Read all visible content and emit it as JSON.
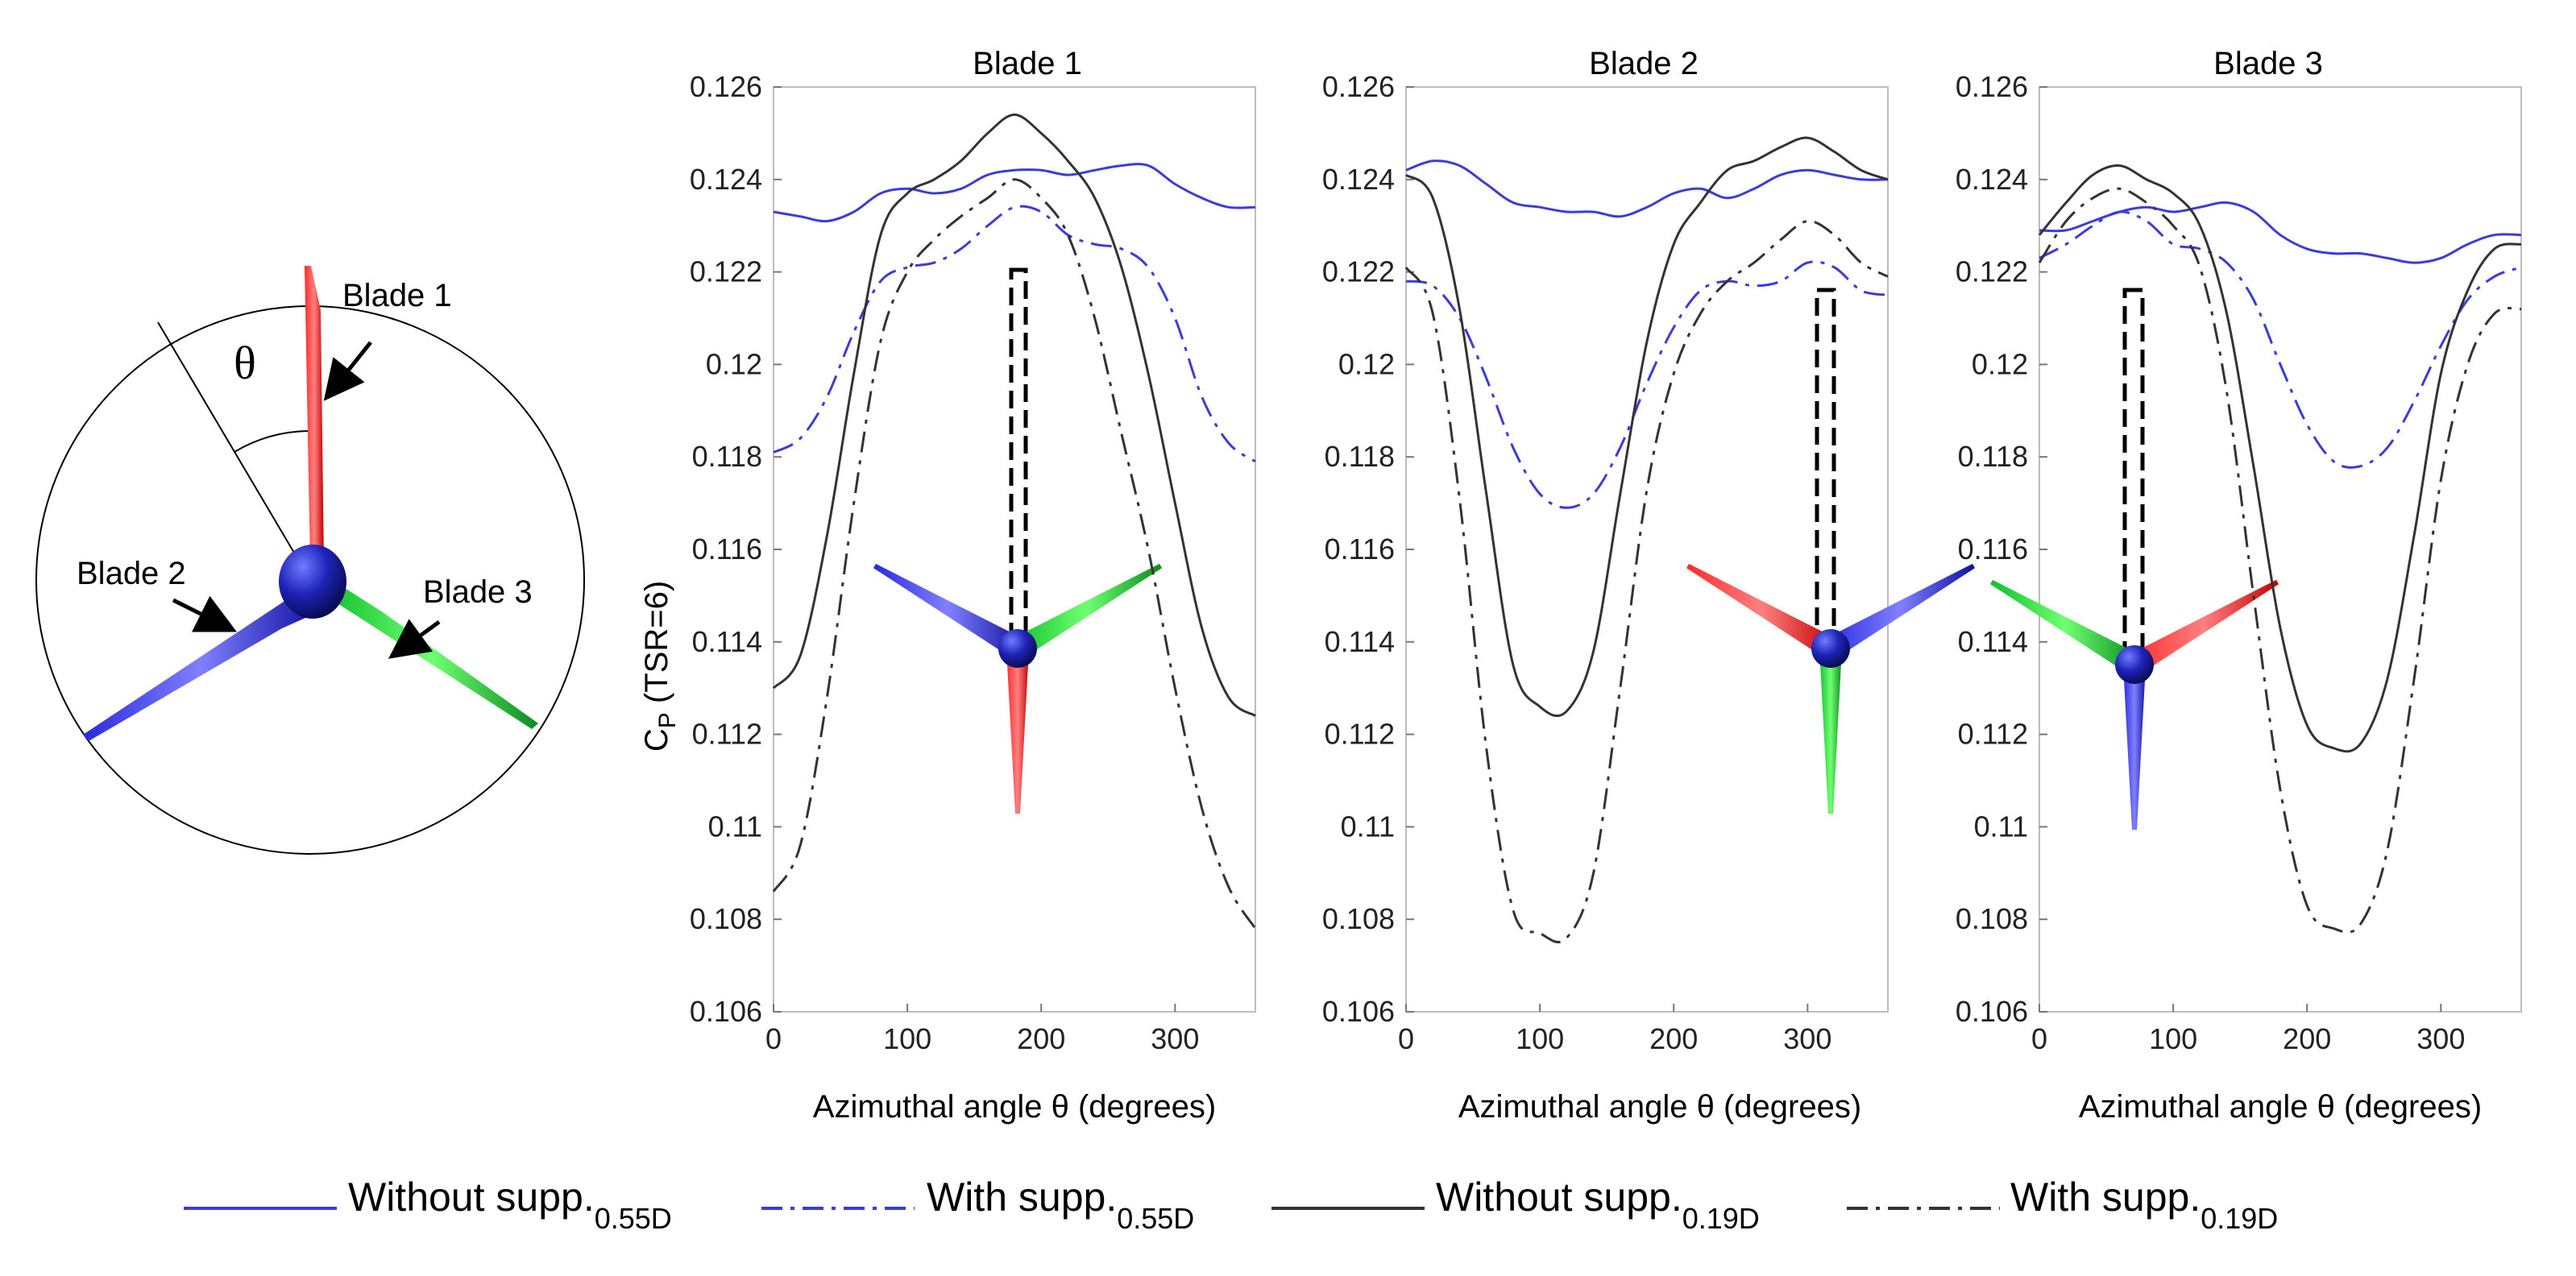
{
  "rotor_diagram": {
    "blade_labels": [
      "Blade 1",
      "Blade 2",
      "Blade 3"
    ],
    "angle_symbol": "θ"
  },
  "legend": {
    "entries": [
      {
        "text": "Without supp.",
        "sub": "0.55D",
        "color": "#3b3bdc",
        "style": "solid"
      },
      {
        "text": "With supp.",
        "sub": "0.55D",
        "color": "#3b3bdc",
        "style": "dashdot"
      },
      {
        "text": "Without supp.",
        "sub": "0.19D",
        "color": "#333333",
        "style": "solid"
      },
      {
        "text": "With supp.",
        "sub": "0.19D",
        "color": "#333333",
        "style": "dashdot"
      }
    ]
  },
  "chart_data": [
    {
      "type": "line",
      "title": "Blade 1",
      "xlabel": "Azimuthal angle θ (degrees)",
      "ylabel": "C",
      "ylabel_sub": "P",
      "ylabel_tail": " (TSR=6)",
      "xlim": [
        0,
        360
      ],
      "ylim": [
        0.106,
        0.126
      ],
      "xticks": [
        0,
        100,
        200,
        300
      ],
      "xtick_labels": [
        "0",
        "100",
        "200",
        "300"
      ],
      "yticks": [
        0.106,
        0.108,
        0.11,
        0.112,
        0.114,
        0.116,
        0.118,
        0.12,
        0.122,
        0.124,
        0.126
      ],
      "ytick_labels": [
        "0.106",
        "0.108",
        "0.11",
        "0.112",
        "0.114",
        "0.116",
        "0.118",
        "0.12",
        "0.122",
        "0.124",
        "0.126"
      ],
      "inset_orientation_deg": 180,
      "series": [
        {
          "name": "Without supp.0.55D",
          "x": [
            0,
            20,
            40,
            60,
            80,
            100,
            120,
            140,
            160,
            180,
            200,
            220,
            240,
            260,
            280,
            300,
            320,
            340,
            360
          ],
          "values": [
            0.1233,
            0.1232,
            0.1231,
            0.1233,
            0.1237,
            0.1238,
            0.1237,
            0.1238,
            0.1241,
            0.1242,
            0.1242,
            0.1241,
            0.1242,
            0.1243,
            0.1243,
            0.1239,
            0.1236,
            0.1234,
            0.1234
          ]
        },
        {
          "name": "With supp.0.55D",
          "x": [
            0,
            20,
            40,
            60,
            80,
            100,
            120,
            140,
            160,
            180,
            200,
            220,
            240,
            260,
            280,
            300,
            320,
            340,
            360
          ],
          "values": [
            0.1181,
            0.1184,
            0.1193,
            0.1207,
            0.1218,
            0.1221,
            0.1222,
            0.1225,
            0.123,
            0.1234,
            0.1233,
            0.1228,
            0.1226,
            0.1225,
            0.1221,
            0.121,
            0.1193,
            0.1183,
            0.1179
          ]
        },
        {
          "name": "Without supp.0.19D",
          "x": [
            0,
            20,
            40,
            60,
            80,
            100,
            120,
            140,
            160,
            180,
            200,
            220,
            240,
            260,
            280,
            300,
            320,
            340,
            360
          ],
          "values": [
            0.113,
            0.1137,
            0.1163,
            0.1198,
            0.1228,
            0.1237,
            0.124,
            0.1244,
            0.125,
            0.1254,
            0.125,
            0.1244,
            0.1236,
            0.1221,
            0.1198,
            0.117,
            0.1143,
            0.1128,
            0.1124
          ]
        },
        {
          "name": "With supp.0.19D",
          "x": [
            0,
            20,
            40,
            60,
            80,
            100,
            120,
            140,
            160,
            180,
            200,
            220,
            240,
            260,
            280,
            300,
            320,
            340,
            360
          ],
          "values": [
            0.1086,
            0.1096,
            0.1128,
            0.117,
            0.1205,
            0.122,
            0.1227,
            0.1232,
            0.1236,
            0.124,
            0.1236,
            0.1228,
            0.121,
            0.1185,
            0.116,
            0.113,
            0.1104,
            0.1087,
            0.1078
          ]
        }
      ]
    },
    {
      "type": "line",
      "title": "Blade 2",
      "xlabel": "Azimuthal angle θ (degrees)",
      "xlim": [
        0,
        360
      ],
      "ylim": [
        0.106,
        0.126
      ],
      "xticks": [
        0,
        100,
        200,
        300
      ],
      "xtick_labels": [
        "0",
        "100",
        "200",
        "300"
      ],
      "yticks": [
        0.106,
        0.108,
        0.11,
        0.112,
        0.114,
        0.116,
        0.118,
        0.12,
        0.122,
        0.124,
        0.126
      ],
      "ytick_labels": [
        "0.106",
        "0.108",
        "0.11",
        "0.112",
        "0.114",
        "0.116",
        "0.118",
        "0.12",
        "0.122",
        "0.124",
        "0.126"
      ],
      "inset_orientation_deg": 300,
      "series": [
        {
          "name": "Without supp.0.55D",
          "x": [
            0,
            20,
            40,
            60,
            80,
            100,
            120,
            140,
            160,
            180,
            200,
            220,
            240,
            260,
            280,
            300,
            320,
            340,
            360
          ],
          "values": [
            0.1242,
            0.1244,
            0.1243,
            0.1239,
            0.1235,
            0.1234,
            0.1233,
            0.1233,
            0.1232,
            0.1234,
            0.1237,
            0.1238,
            0.1236,
            0.1238,
            0.1241,
            0.1242,
            0.1241,
            0.124,
            0.124
          ]
        },
        {
          "name": "With supp.0.55D",
          "x": [
            0,
            20,
            40,
            60,
            80,
            100,
            120,
            140,
            160,
            180,
            200,
            220,
            240,
            260,
            280,
            300,
            320,
            340,
            360
          ],
          "values": [
            0.1218,
            0.1217,
            0.121,
            0.1197,
            0.1182,
            0.1172,
            0.1169,
            0.1172,
            0.1182,
            0.1196,
            0.1208,
            0.1216,
            0.1218,
            0.1217,
            0.1218,
            0.1222,
            0.1221,
            0.1216,
            0.1215
          ]
        },
        {
          "name": "Without supp.0.19D",
          "x": [
            0,
            20,
            40,
            60,
            80,
            100,
            120,
            140,
            160,
            180,
            200,
            220,
            240,
            260,
            280,
            300,
            320,
            340,
            360
          ],
          "values": [
            0.1241,
            0.1236,
            0.1212,
            0.1172,
            0.1135,
            0.1126,
            0.1125,
            0.1138,
            0.1172,
            0.1205,
            0.1226,
            0.1235,
            0.1242,
            0.1244,
            0.1247,
            0.1249,
            0.1246,
            0.1242,
            0.124
          ]
        },
        {
          "name": "With supp.0.19D",
          "x": [
            0,
            20,
            40,
            60,
            80,
            100,
            120,
            140,
            160,
            180,
            200,
            220,
            240,
            260,
            280,
            300,
            320,
            340,
            360
          ],
          "values": [
            0.1221,
            0.1211,
            0.1171,
            0.1117,
            0.1082,
            0.1077,
            0.1076,
            0.109,
            0.113,
            0.1173,
            0.1198,
            0.1211,
            0.1218,
            0.1222,
            0.1227,
            0.1231,
            0.1228,
            0.1222,
            0.1219
          ]
        }
      ]
    },
    {
      "type": "line",
      "title": "Blade 3",
      "xlabel": "Azimuthal angle θ (degrees)",
      "xlim": [
        0,
        360
      ],
      "ylim": [
        0.106,
        0.126
      ],
      "xticks": [
        0,
        100,
        200,
        300
      ],
      "xtick_labels": [
        "0",
        "100",
        "200",
        "300"
      ],
      "yticks": [
        0.106,
        0.108,
        0.11,
        0.112,
        0.114,
        0.116,
        0.118,
        0.12,
        0.122,
        0.124,
        0.126
      ],
      "ytick_labels": [
        "0.106",
        "0.108",
        "0.11",
        "0.112",
        "0.114",
        "0.116",
        "0.118",
        "0.12",
        "0.122",
        "0.124",
        "0.126"
      ],
      "inset_orientation_deg": 60,
      "series": [
        {
          "name": "Without supp.0.55D",
          "x": [
            0,
            20,
            40,
            60,
            80,
            100,
            120,
            140,
            160,
            180,
            200,
            220,
            240,
            260,
            280,
            300,
            320,
            340,
            360
          ],
          "values": [
            0.1229,
            0.1229,
            0.1231,
            0.1233,
            0.1234,
            0.1233,
            0.1234,
            0.1235,
            0.1233,
            0.1228,
            0.1225,
            0.1224,
            0.1224,
            0.1223,
            0.1222,
            0.1223,
            0.1226,
            0.1228,
            0.1228
          ]
        },
        {
          "name": "With supp.0.55D",
          "x": [
            0,
            20,
            40,
            60,
            80,
            100,
            120,
            140,
            160,
            180,
            200,
            220,
            240,
            260,
            280,
            300,
            320,
            340,
            360
          ],
          "values": [
            0.1223,
            0.1226,
            0.123,
            0.1233,
            0.1231,
            0.1226,
            0.1225,
            0.1222,
            0.1214,
            0.12,
            0.1187,
            0.1179,
            0.1178,
            0.1182,
            0.1192,
            0.1204,
            0.1214,
            0.1219,
            0.1221
          ]
        },
        {
          "name": "Without supp.0.19D",
          "x": [
            0,
            20,
            40,
            60,
            80,
            100,
            120,
            140,
            160,
            180,
            200,
            220,
            240,
            260,
            280,
            300,
            320,
            340,
            360
          ],
          "values": [
            0.1228,
            0.1235,
            0.1241,
            0.1243,
            0.124,
            0.1237,
            0.123,
            0.1211,
            0.1178,
            0.1143,
            0.1122,
            0.1117,
            0.1118,
            0.1132,
            0.1163,
            0.1198,
            0.1216,
            0.1225,
            0.1226
          ]
        },
        {
          "name": "With supp.0.19D",
          "x": [
            0,
            20,
            40,
            60,
            80,
            100,
            120,
            140,
            160,
            180,
            200,
            220,
            240,
            260,
            280,
            300,
            320,
            340,
            360
          ],
          "values": [
            0.1222,
            0.1231,
            0.1236,
            0.1238,
            0.1235,
            0.123,
            0.1221,
            0.1194,
            0.115,
            0.1108,
            0.1083,
            0.1078,
            0.1079,
            0.1095,
            0.1132,
            0.1175,
            0.12,
            0.1211,
            0.1212
          ]
        }
      ]
    }
  ]
}
